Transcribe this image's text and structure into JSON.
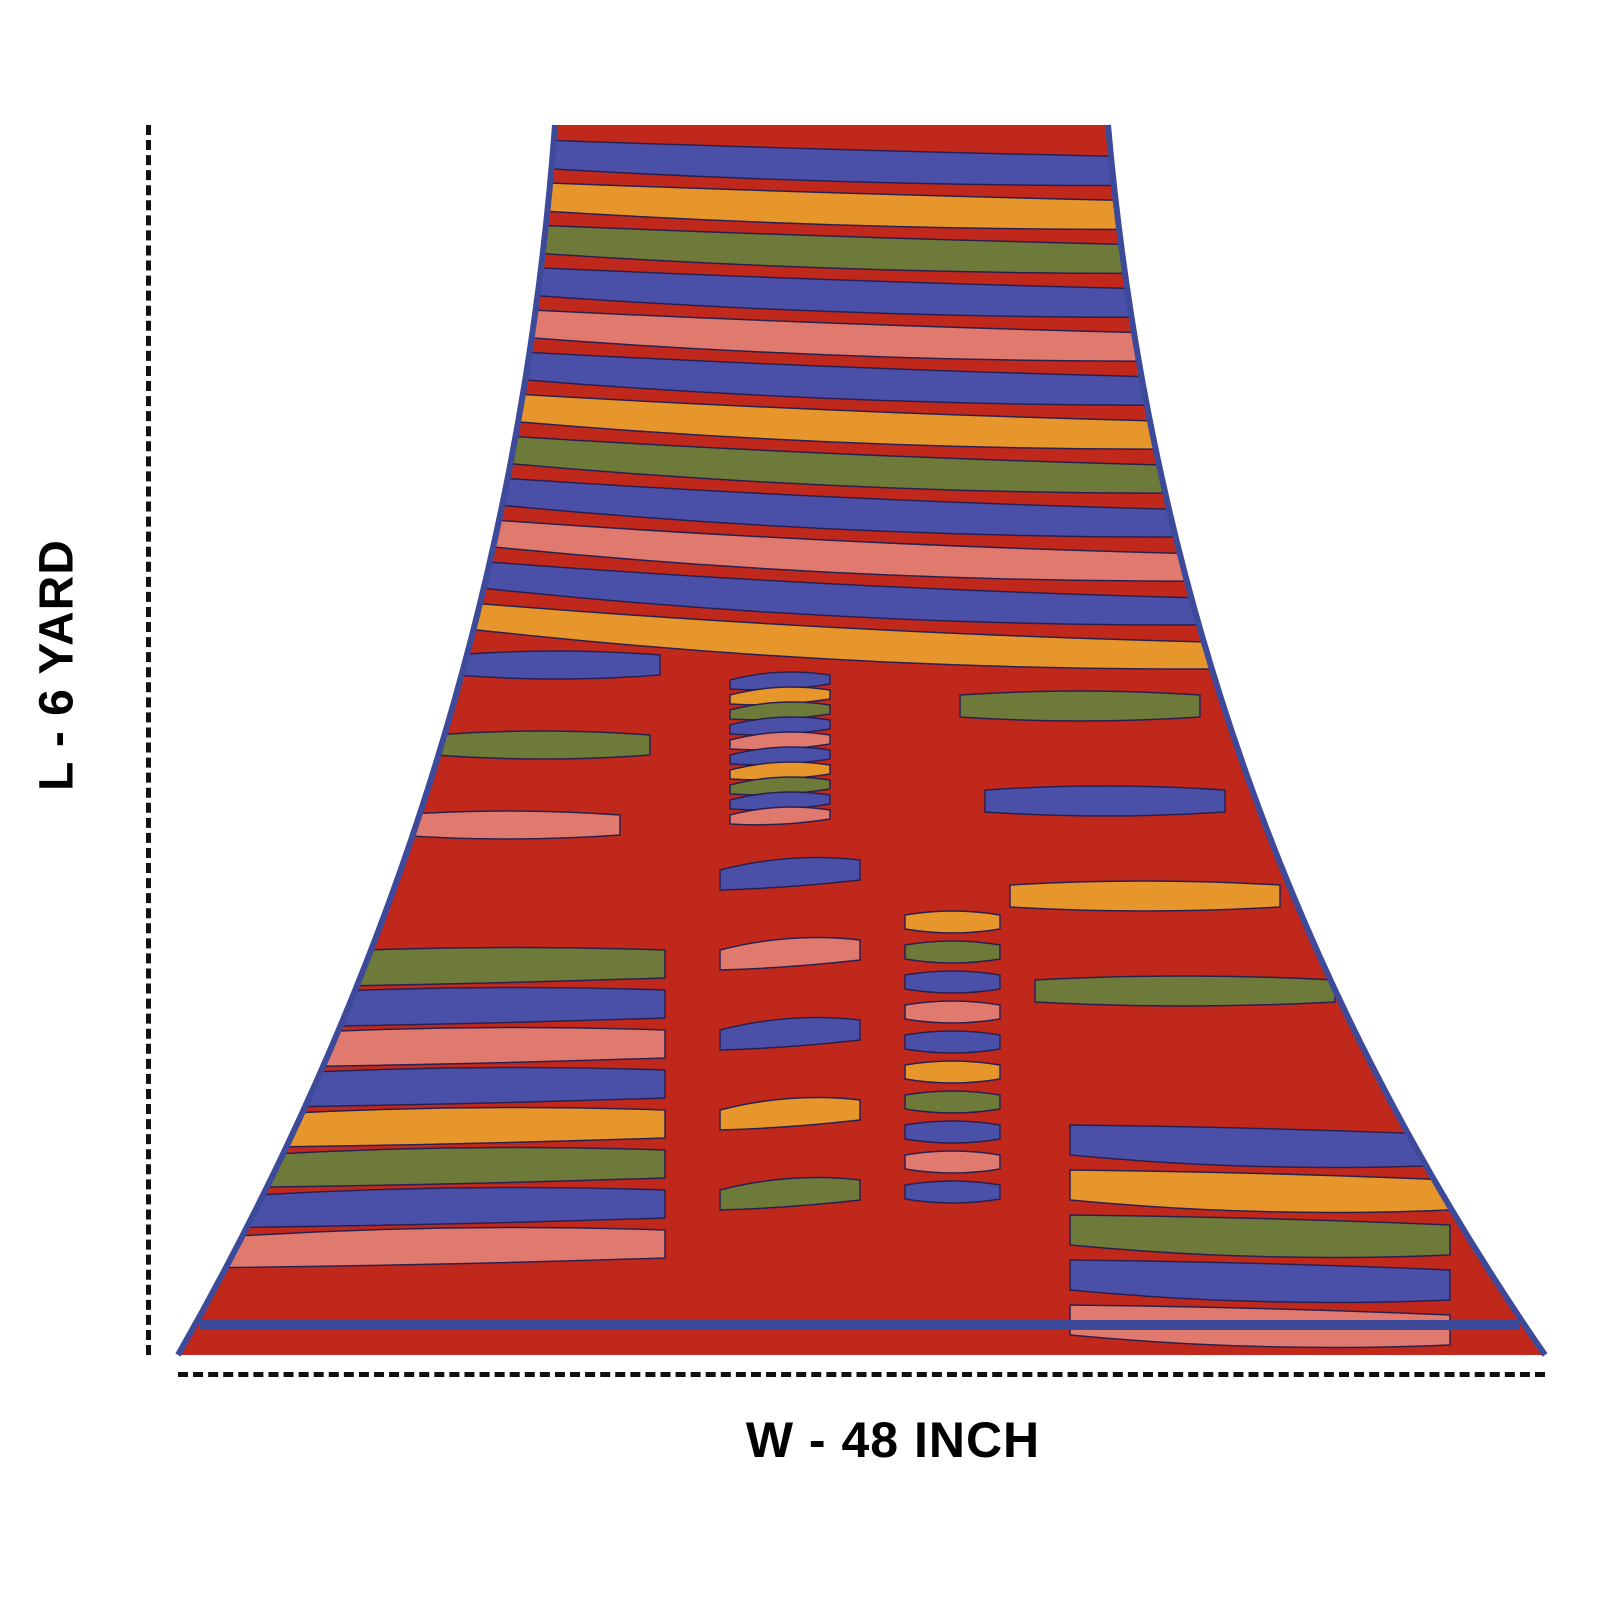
{
  "labels": {
    "length": "L - 6 YARD",
    "width": "W - 48 INCH"
  },
  "colors": {
    "base": "#c0281c",
    "blue": "#4a4fa8",
    "orange": "#e6962a",
    "green": "#6e7a3a",
    "pink": "#e07a6e",
    "border": "#3d4a9a"
  }
}
